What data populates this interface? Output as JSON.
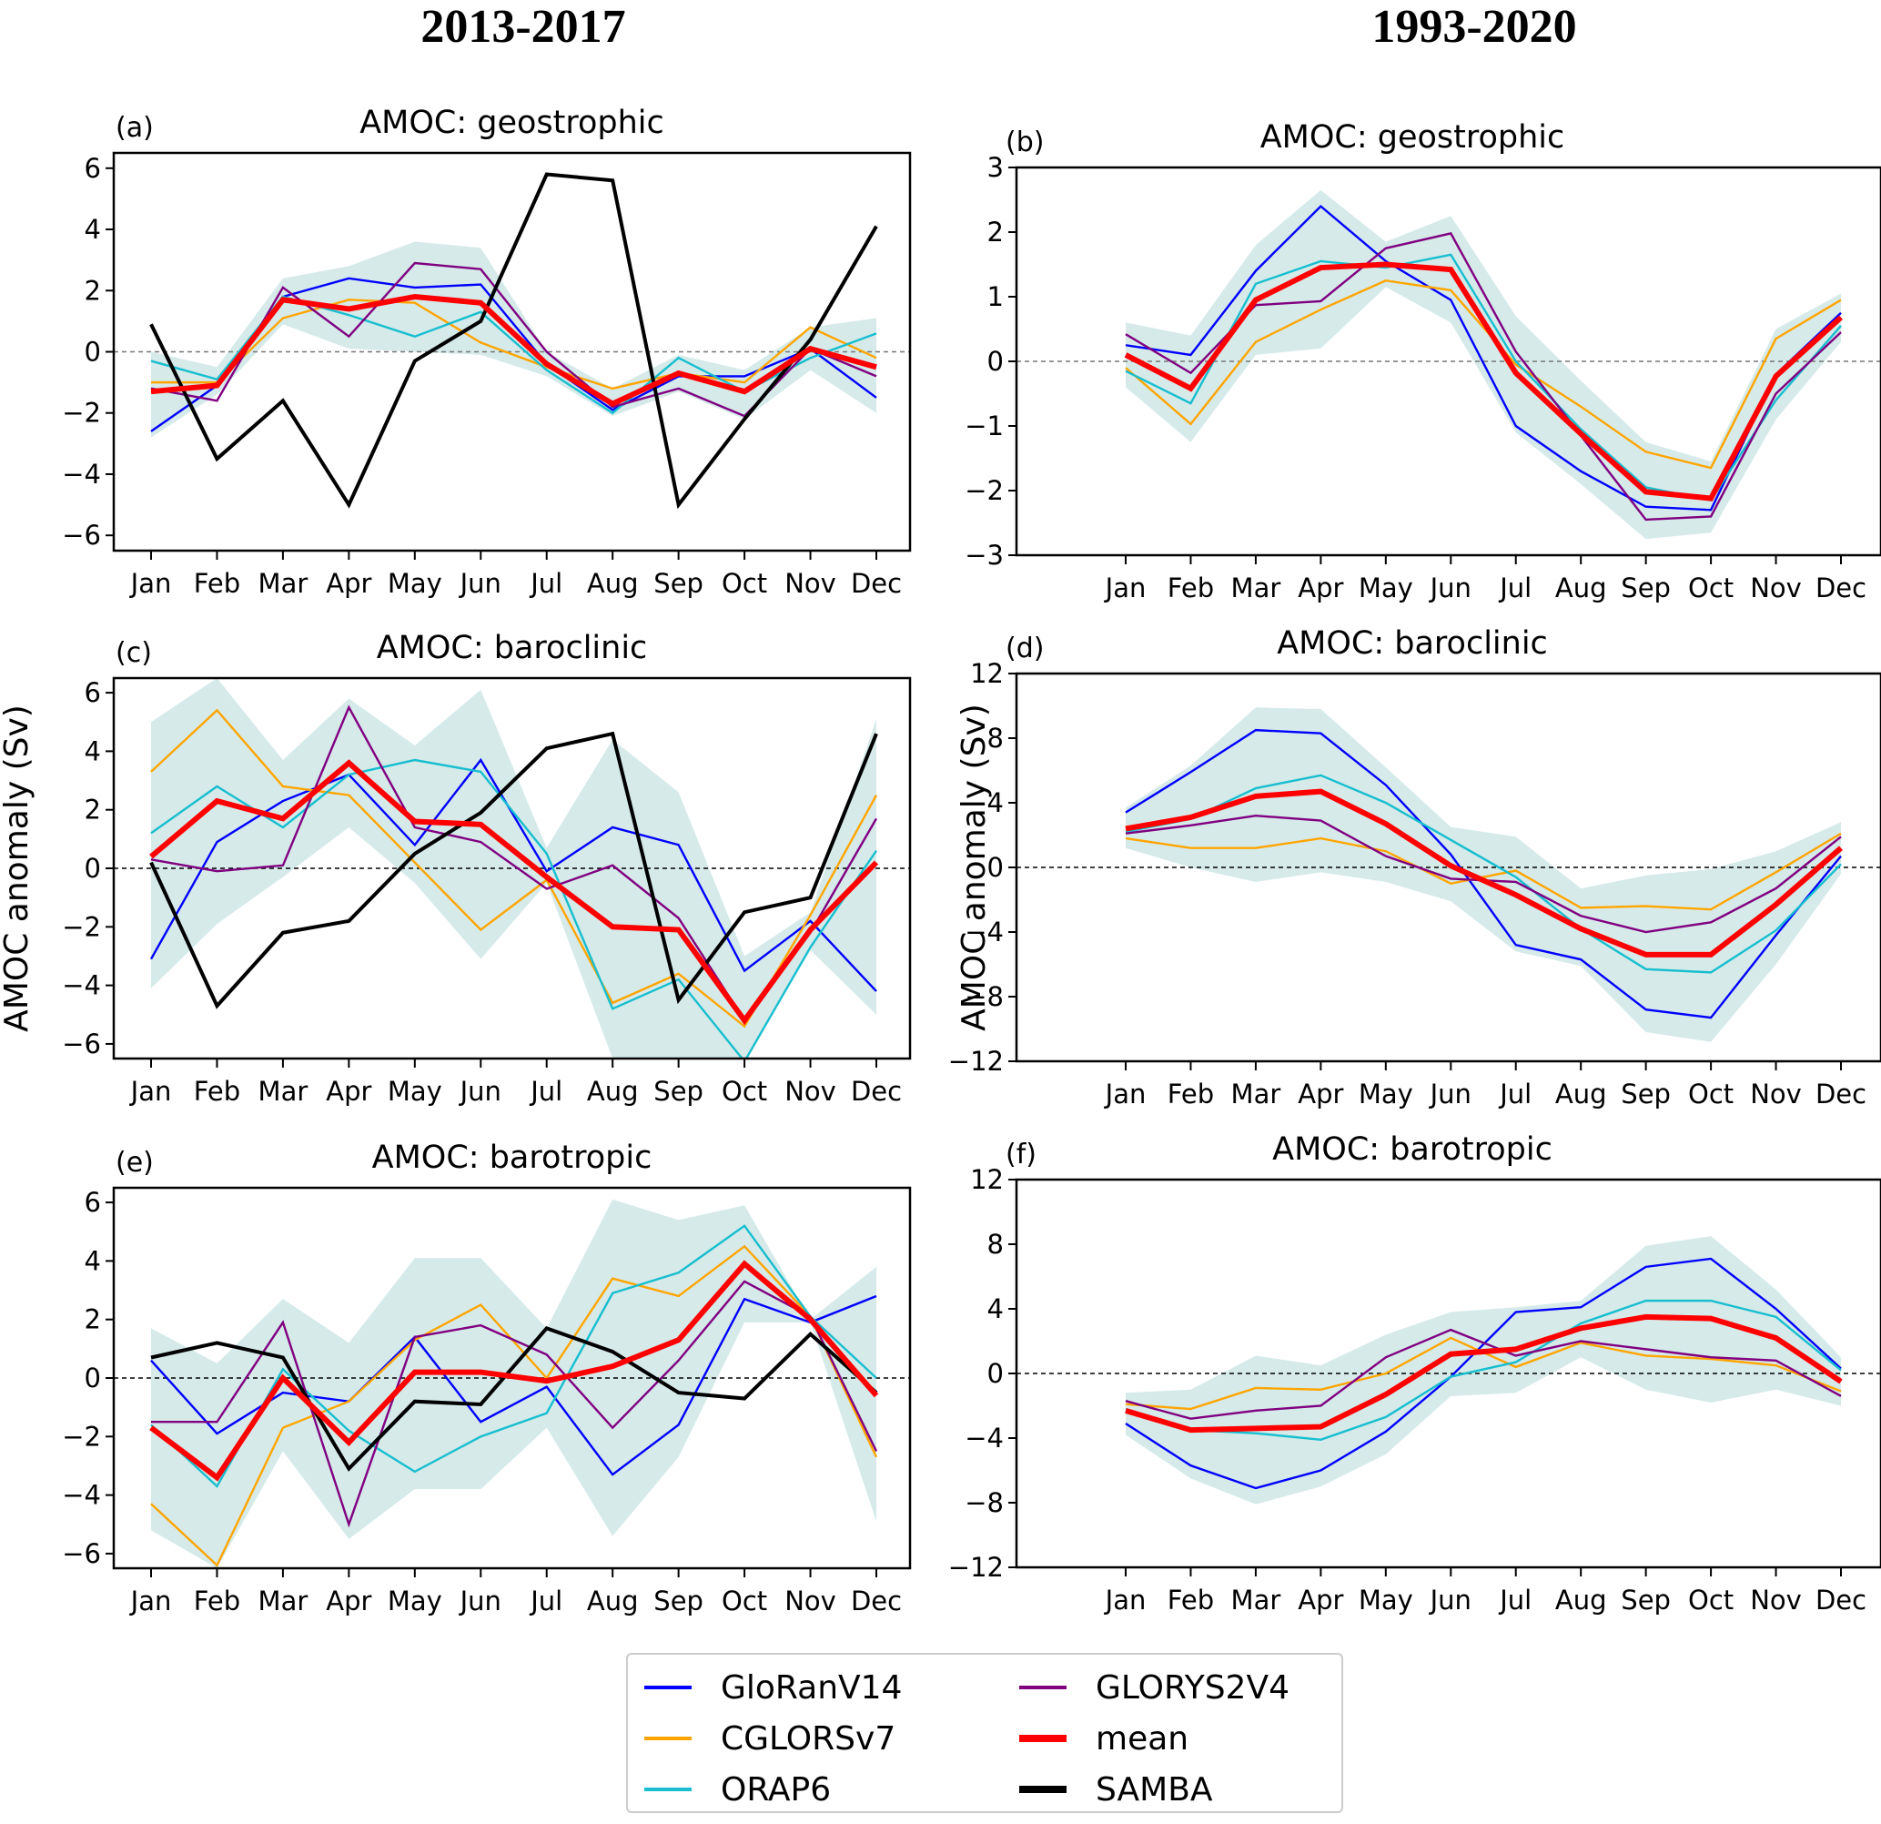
{
  "column_titles": [
    "2013-2017",
    "1993-2020"
  ],
  "legend": [
    {
      "name": "GloRanV14",
      "color": "#0000ff"
    },
    {
      "name": "CGLORSv7",
      "color": "#ffa500"
    },
    {
      "name": "ORAP6",
      "color": "#17becf"
    },
    {
      "name": "GLORYS2V4",
      "color": "#800080"
    },
    {
      "name": "mean",
      "color": "#ff0000"
    },
    {
      "name": "SAMBA",
      "color": "#000000"
    }
  ],
  "chart_data": [
    {
      "type": "line",
      "tag": "(a)",
      "title": "AMOC: geostrophic",
      "column": "2013-2017",
      "xlabel": "",
      "ylabel": "",
      "categories": [
        "Jan",
        "Feb",
        "Mar",
        "Apr",
        "May",
        "Jun",
        "Jul",
        "Aug",
        "Sep",
        "Oct",
        "Nov",
        "Dec"
      ],
      "ylim": [
        -6.5,
        6.5
      ],
      "yticks": [
        -6,
        -4,
        -2,
        0,
        2,
        4,
        6
      ],
      "ytick_labels": [
        "−6",
        "−4",
        "−2",
        "0",
        "2",
        "4",
        "6"
      ],
      "zero_line": true,
      "spread_band": {
        "lower": [
          -2.8,
          -1.4,
          0.9,
          0.1,
          0.0,
          -0.1,
          -0.8,
          -2.1,
          -1.3,
          -2.2,
          -0.6,
          -2.0
        ],
        "upper": [
          0.0,
          -0.5,
          2.4,
          2.8,
          3.6,
          3.4,
          0.0,
          -1.2,
          -0.1,
          -0.6,
          0.8,
          1.1
        ]
      },
      "series": [
        {
          "name": "GloRanV14",
          "values": [
            -2.6,
            -1.1,
            1.8,
            2.4,
            2.1,
            2.2,
            -0.4,
            -1.9,
            -0.8,
            -0.8,
            0.1,
            -1.5
          ]
        },
        {
          "name": "CGLORSv7",
          "values": [
            -1.0,
            -1.0,
            1.1,
            1.7,
            1.6,
            0.3,
            -0.5,
            -1.2,
            -0.7,
            -1.0,
            0.8,
            -0.2
          ]
        },
        {
          "name": "ORAP6",
          "values": [
            -0.3,
            -0.9,
            1.8,
            1.2,
            0.5,
            1.3,
            -0.6,
            -2.0,
            -0.2,
            -1.3,
            -0.2,
            0.6
          ]
        },
        {
          "name": "GLORYS2V4",
          "values": [
            -1.2,
            -1.6,
            2.1,
            0.5,
            2.9,
            2.7,
            0.0,
            -1.8,
            -1.2,
            -2.1,
            0.1,
            -0.8
          ]
        },
        {
          "name": "mean",
          "values": [
            -1.3,
            -1.1,
            1.7,
            1.4,
            1.8,
            1.6,
            -0.4,
            -1.7,
            -0.7,
            -1.3,
            0.1,
            -0.5
          ]
        },
        {
          "name": "SAMBA",
          "values": [
            0.9,
            -3.5,
            -1.6,
            -5.0,
            -0.3,
            1.0,
            5.8,
            5.6,
            -5.0,
            -2.2,
            0.4,
            4.1
          ]
        }
      ]
    },
    {
      "type": "line",
      "tag": "(b)",
      "title": "AMOC: geostrophic",
      "column": "1993-2020",
      "xlabel": "",
      "ylabel": "",
      "categories": [
        "Jan",
        "Feb",
        "Mar",
        "Apr",
        "May",
        "Jun",
        "Jul",
        "Aug",
        "Sep",
        "Oct",
        "Nov",
        "Dec"
      ],
      "ylim": [
        -3,
        3
      ],
      "yticks": [
        -3,
        -2,
        -1,
        0,
        1,
        2,
        3
      ],
      "ytick_labels": [
        "−3",
        "−2",
        "−1",
        "0",
        "1",
        "2",
        "3"
      ],
      "zero_line": true,
      "spread_band": {
        "lower": [
          -0.4,
          -1.25,
          0.1,
          0.2,
          1.15,
          0.6,
          -1.1,
          -1.9,
          -2.75,
          -2.65,
          -0.9,
          0.3
        ],
        "upper": [
          0.6,
          0.4,
          1.8,
          2.65,
          1.85,
          2.25,
          0.7,
          -0.3,
          -1.25,
          -1.55,
          0.5,
          1.05
        ]
      },
      "series": [
        {
          "name": "GloRanV14",
          "values": [
            0.25,
            0.1,
            1.4,
            2.4,
            1.55,
            0.95,
            -1.0,
            -1.7,
            -2.25,
            -2.3,
            -0.2,
            0.75
          ]
        },
        {
          "name": "CGLORSv7",
          "values": [
            -0.1,
            -0.97,
            0.3,
            0.8,
            1.25,
            1.1,
            -0.05,
            -0.7,
            -1.4,
            -1.65,
            0.35,
            0.95
          ]
        },
        {
          "name": "ORAP6",
          "values": [
            -0.15,
            -0.65,
            1.2,
            1.55,
            1.45,
            1.65,
            0.0,
            -1.05,
            -1.95,
            -2.15,
            -0.6,
            0.55
          ]
        },
        {
          "name": "GLORYS2V4",
          "values": [
            0.42,
            -0.18,
            0.87,
            0.93,
            1.75,
            1.98,
            0.15,
            -1.15,
            -2.45,
            -2.4,
            -0.5,
            0.45
          ]
        },
        {
          "name": "mean",
          "values": [
            0.1,
            -0.42,
            0.95,
            1.45,
            1.5,
            1.42,
            -0.18,
            -1.12,
            -2.02,
            -2.12,
            -0.23,
            0.68
          ]
        }
      ]
    },
    {
      "type": "line",
      "tag": "(c)",
      "title": "AMOC:  baroclinic",
      "column": "2013-2017",
      "xlabel": "",
      "ylabel": "AMOC anomaly (Sv)",
      "categories": [
        "Jan",
        "Feb",
        "Mar",
        "Apr",
        "May",
        "Jun",
        "Jul",
        "Aug",
        "Sep",
        "Oct",
        "Nov",
        "Dec"
      ],
      "ylim": [
        -6.5,
        6.5
      ],
      "yticks": [
        -6,
        -4,
        -2,
        0,
        2,
        4,
        6
      ],
      "ytick_labels": [
        "−6",
        "−4",
        "−2",
        "0",
        "2",
        "4",
        "6"
      ],
      "zero_line": true,
      "spread_band": {
        "lower": [
          -4.1,
          -1.9,
          -0.3,
          1.4,
          -0.5,
          -3.1,
          -0.5,
          -6.5,
          -6.5,
          -6.5,
          -2.8,
          -5.0
        ],
        "upper": [
          5.0,
          6.5,
          3.7,
          5.8,
          4.2,
          6.1,
          0.7,
          4.4,
          2.6,
          -3.0,
          -1.5,
          5.1
        ]
      },
      "series": [
        {
          "name": "GloRanV14",
          "values": [
            -3.1,
            0.9,
            2.3,
            3.2,
            0.8,
            3.7,
            -0.1,
            1.4,
            0.8,
            -3.5,
            -1.8,
            -4.2
          ]
        },
        {
          "name": "CGLORSv7",
          "values": [
            3.3,
            5.4,
            2.8,
            2.5,
            0.2,
            -2.1,
            -0.4,
            -4.6,
            -3.6,
            -5.4,
            -1.6,
            2.5
          ]
        },
        {
          "name": "ORAP6",
          "values": [
            1.2,
            2.8,
            1.4,
            3.2,
            3.7,
            3.3,
            0.5,
            -4.8,
            -3.8,
            -6.6,
            -2.7,
            0.6
          ]
        },
        {
          "name": "GLORYS2V4",
          "values": [
            0.3,
            -0.1,
            0.1,
            5.5,
            1.4,
            0.9,
            -0.7,
            0.1,
            -1.7,
            -5.2,
            -2.2,
            1.7
          ]
        },
        {
          "name": "mean",
          "values": [
            0.4,
            2.3,
            1.7,
            3.6,
            1.6,
            1.5,
            -0.3,
            -2.0,
            -2.1,
            -5.2,
            -2.1,
            0.2
          ]
        },
        {
          "name": "SAMBA",
          "values": [
            0.2,
            -4.7,
            -2.2,
            -1.8,
            0.5,
            1.9,
            4.1,
            4.6,
            -4.5,
            -1.5,
            -1.0,
            4.6
          ]
        }
      ]
    },
    {
      "type": "line",
      "tag": "(d)",
      "title": "AMOC:  baroclinic",
      "column": "1993-2020",
      "xlabel": "",
      "ylabel": "AMOC anomaly (Sv)",
      "categories": [
        "Jan",
        "Feb",
        "Mar",
        "Apr",
        "May",
        "Jun",
        "Jul",
        "Aug",
        "Sep",
        "Oct",
        "Nov",
        "Dec"
      ],
      "ylim": [
        -12,
        12
      ],
      "yticks": [
        -12,
        -8,
        -4,
        0,
        4,
        8,
        12
      ],
      "ytick_labels": [
        "−12",
        "−8",
        "−4",
        "0",
        "4",
        "8",
        "12"
      ],
      "zero_line": true,
      "spread_band": {
        "lower": [
          1.2,
          0.0,
          -0.9,
          -0.3,
          -0.9,
          -2.1,
          -5.2,
          -6.1,
          -10.2,
          -10.8,
          -6.0,
          -0.4
        ],
        "upper": [
          3.7,
          6.3,
          9.9,
          9.8,
          6.2,
          2.5,
          1.9,
          -1.3,
          -0.5,
          -0.1,
          1.0,
          2.8
        ]
      },
      "series": [
        {
          "name": "GloRanV14",
          "values": [
            3.4,
            5.9,
            8.5,
            8.3,
            5.1,
            0.8,
            -4.8,
            -5.7,
            -8.8,
            -9.3,
            -4.2,
            0.7
          ]
        },
        {
          "name": "CGLORSv7",
          "values": [
            1.8,
            1.2,
            1.2,
            1.8,
            1.0,
            -1.0,
            -0.2,
            -2.5,
            -2.4,
            -2.6,
            -0.3,
            2.1
          ]
        },
        {
          "name": "ORAP6",
          "values": [
            2.2,
            3.0,
            4.9,
            5.7,
            4.0,
            1.7,
            -0.6,
            -3.8,
            -6.3,
            -6.5,
            -3.9,
            0.2
          ]
        },
        {
          "name": "GLORYS2V4",
          "values": [
            2.1,
            2.6,
            3.2,
            2.9,
            0.7,
            -0.7,
            -0.9,
            -3.0,
            -4.0,
            -3.4,
            -1.3,
            1.9
          ]
        },
        {
          "name": "mean",
          "values": [
            2.4,
            3.1,
            4.4,
            4.7,
            2.7,
            0.1,
            -1.7,
            -3.8,
            -5.4,
            -5.4,
            -2.3,
            1.2
          ]
        }
      ]
    },
    {
      "type": "line",
      "tag": "(e)",
      "title": "AMOC:  barotropic",
      "column": "2013-2017",
      "xlabel": "",
      "ylabel": "",
      "categories": [
        "Jan",
        "Feb",
        "Mar",
        "Apr",
        "May",
        "Jun",
        "Jul",
        "Aug",
        "Sep",
        "Oct",
        "Nov",
        "Dec"
      ],
      "ylim": [
        -6.5,
        6.5
      ],
      "yticks": [
        -6,
        -4,
        -2,
        0,
        2,
        4,
        6
      ],
      "ytick_labels": [
        "−6",
        "−4",
        "−2",
        "0",
        "2",
        "4",
        "6"
      ],
      "zero_line": true,
      "spread_band": {
        "lower": [
          -5.2,
          -6.5,
          -2.5,
          -5.5,
          -3.8,
          -3.8,
          -1.7,
          -5.4,
          -2.7,
          1.9,
          1.9,
          -4.9
        ],
        "upper": [
          1.7,
          0.5,
          2.7,
          1.2,
          4.1,
          4.1,
          1.7,
          6.1,
          5.4,
          5.9,
          2.0,
          3.8
        ]
      },
      "series": [
        {
          "name": "GloRanV14",
          "values": [
            0.6,
            -1.9,
            -0.5,
            -0.8,
            1.4,
            -1.5,
            -0.3,
            -3.3,
            -1.6,
            2.7,
            1.9,
            2.8
          ]
        },
        {
          "name": "CGLORSv7",
          "values": [
            -4.3,
            -6.4,
            -1.7,
            -0.8,
            1.3,
            2.5,
            0.0,
            3.4,
            2.8,
            4.5,
            2.1,
            -2.7
          ]
        },
        {
          "name": "ORAP6",
          "values": [
            -1.6,
            -3.7,
            0.3,
            -1.8,
            -3.2,
            -2.0,
            -1.2,
            2.9,
            3.6,
            5.2,
            2.1,
            0.0
          ]
        },
        {
          "name": "GLORYS2V4",
          "values": [
            -1.5,
            -1.5,
            1.9,
            -5.0,
            1.4,
            1.8,
            0.8,
            -1.7,
            0.6,
            3.3,
            2.1,
            -2.5
          ]
        },
        {
          "name": "mean",
          "values": [
            -1.7,
            -3.4,
            0.0,
            -2.2,
            0.2,
            0.2,
            -0.1,
            0.4,
            1.3,
            3.9,
            2.0,
            -0.6
          ]
        },
        {
          "name": "SAMBA",
          "values": [
            0.7,
            1.2,
            0.7,
            -3.1,
            -0.8,
            -0.9,
            1.7,
            0.9,
            -0.5,
            -0.7,
            1.5,
            -0.5
          ]
        }
      ]
    },
    {
      "type": "line",
      "tag": "(f)",
      "title": "AMOC:  barotropic",
      "column": "1993-2020",
      "xlabel": "",
      "ylabel": "",
      "categories": [
        "Jan",
        "Feb",
        "Mar",
        "Apr",
        "May",
        "Jun",
        "Jul",
        "Aug",
        "Sep",
        "Oct",
        "Nov",
        "Dec"
      ],
      "ylim": [
        -12,
        12
      ],
      "yticks": [
        -12,
        -8,
        -4,
        0,
        4,
        8,
        12
      ],
      "ytick_labels": [
        "−12",
        "−8",
        "−4",
        "0",
        "4",
        "8",
        "12"
      ],
      "zero_line": true,
      "spread_band": {
        "lower": [
          -3.8,
          -6.5,
          -8.1,
          -7.0,
          -5.0,
          -1.4,
          -1.2,
          1.0,
          -1.0,
          -1.8,
          -1.0,
          -2.0
        ],
        "upper": [
          -1.2,
          -1.0,
          1.1,
          0.5,
          2.4,
          3.8,
          4.1,
          4.5,
          7.9,
          8.5,
          5.2,
          1.0
        ]
      },
      "series": [
        {
          "name": "GloRanV14",
          "values": [
            -3.1,
            -5.7,
            -7.1,
            -6.0,
            -3.6,
            -0.2,
            3.8,
            4.1,
            6.6,
            7.1,
            4.0,
            0.3
          ]
        },
        {
          "name": "CGLORSv7",
          "values": [
            -1.9,
            -2.2,
            -0.9,
            -1.0,
            0.0,
            2.2,
            0.4,
            1.9,
            1.1,
            0.9,
            0.5,
            -1.1
          ]
        },
        {
          "name": "ORAP6",
          "values": [
            -2.2,
            -3.5,
            -3.7,
            -4.1,
            -2.7,
            -0.2,
            0.7,
            3.1,
            4.5,
            4.5,
            3.5,
            0.2
          ]
        },
        {
          "name": "GLORYS2V4",
          "values": [
            -1.7,
            -2.8,
            -2.3,
            -2.0,
            1.0,
            2.7,
            1.1,
            2.0,
            1.5,
            1.0,
            0.8,
            -1.4
          ]
        },
        {
          "name": "mean",
          "values": [
            -2.3,
            -3.5,
            -3.4,
            -3.3,
            -1.3,
            1.2,
            1.5,
            2.8,
            3.5,
            3.4,
            2.2,
            -0.5
          ]
        }
      ]
    }
  ]
}
